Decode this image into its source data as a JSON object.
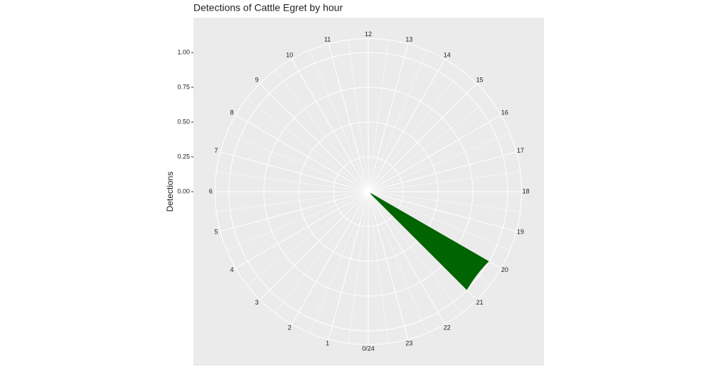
{
  "chart_data": {
    "type": "polar-bar",
    "title": "Detections of Cattle Egret by hour",
    "y_label": "Detections",
    "categories": [
      "0/24",
      "1",
      "2",
      "3",
      "4",
      "5",
      "6",
      "7",
      "8",
      "9",
      "10",
      "11",
      "12",
      "13",
      "14",
      "15",
      "16",
      "17",
      "18",
      "19",
      "20",
      "21",
      "22",
      "23"
    ],
    "values": [
      0,
      0,
      0,
      0,
      0,
      0,
      0,
      0,
      0,
      0,
      0,
      0,
      0,
      0,
      0,
      0,
      0,
      0,
      0,
      0,
      1,
      0,
      0,
      0
    ],
    "color": "#006400",
    "ylim": [
      0,
      1.1
    ],
    "yticks": [
      {
        "value": 0,
        "label": "0.00"
      },
      {
        "value": 0.25,
        "label": "0.25"
      },
      {
        "value": 0.5,
        "label": "0.50"
      },
      {
        "value": 0.75,
        "label": "0.75"
      },
      {
        "value": 1,
        "label": "1.00"
      }
    ],
    "grid": true
  }
}
